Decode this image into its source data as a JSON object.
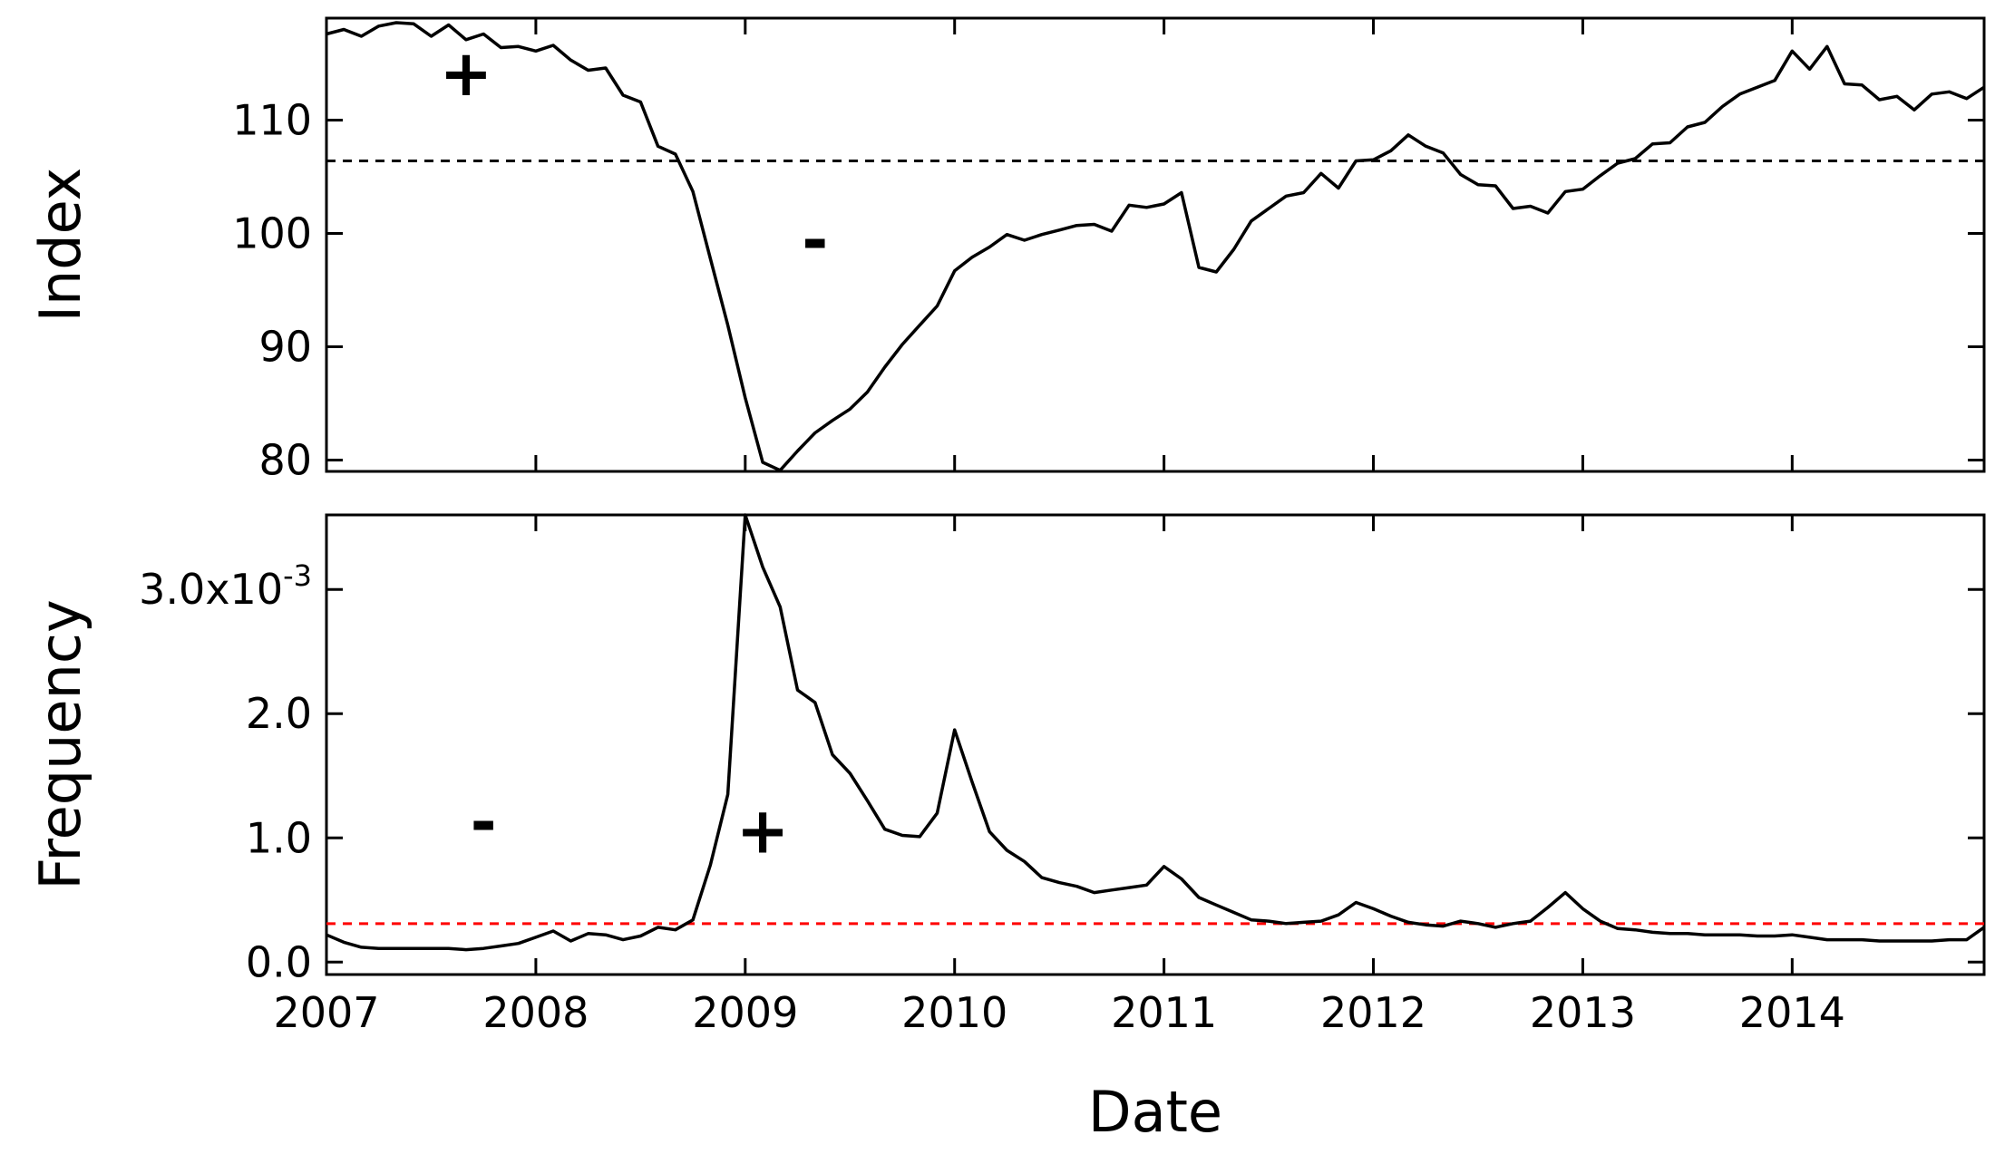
{
  "chart_data": [
    {
      "type": "line",
      "ylabel": "Index",
      "xlim": [
        "2007-01",
        "2014-12"
      ],
      "ylim": [
        79,
        119
      ],
      "yticks": [
        {
          "value": 80,
          "label": "80"
        },
        {
          "value": 90,
          "label": "90"
        },
        {
          "value": 100,
          "label": "100"
        },
        {
          "value": 110,
          "label": "110"
        }
      ],
      "reference_line": {
        "value": 106.4,
        "color": "#000000",
        "style": "dashed"
      },
      "annotations": [
        {
          "text": "+",
          "x": "2007-09",
          "y": 112.2
        },
        {
          "text": "-",
          "x": "2009-05",
          "y": 97.5
        }
      ],
      "series": [
        {
          "color": "#000000",
          "x": [
            "2007-01",
            "2007-02",
            "2007-03",
            "2007-04",
            "2007-05",
            "2007-06",
            "2007-07",
            "2007-08",
            "2007-09",
            "2007-10",
            "2007-11",
            "2007-12",
            "2008-01",
            "2008-02",
            "2008-03",
            "2008-04",
            "2008-05",
            "2008-06",
            "2008-07",
            "2008-08",
            "2008-09",
            "2008-10",
            "2008-11",
            "2008-12",
            "2009-01",
            "2009-02",
            "2009-03",
            "2009-04",
            "2009-05",
            "2009-06",
            "2009-07",
            "2009-08",
            "2009-09",
            "2009-10",
            "2009-11",
            "2009-12",
            "2010-01",
            "2010-02",
            "2010-03",
            "2010-04",
            "2010-05",
            "2010-06",
            "2010-07",
            "2010-08",
            "2010-09",
            "2010-10",
            "2010-11",
            "2010-12",
            "2011-01",
            "2011-02",
            "2011-03",
            "2011-04",
            "2011-05",
            "2011-06",
            "2011-07",
            "2011-08",
            "2011-09",
            "2011-10",
            "2011-11",
            "2011-12",
            "2012-01",
            "2012-02",
            "2012-03",
            "2012-04",
            "2012-05",
            "2012-06",
            "2012-07",
            "2012-08",
            "2012-09",
            "2012-10",
            "2012-11",
            "2012-12",
            "2013-01",
            "2013-02",
            "2013-03",
            "2013-04",
            "2013-05",
            "2013-06",
            "2013-07",
            "2013-08",
            "2013-09",
            "2013-10",
            "2013-11",
            "2013-12",
            "2014-01",
            "2014-02",
            "2014-03",
            "2014-04",
            "2014-05",
            "2014-06",
            "2014-07",
            "2014-08",
            "2014-09",
            "2014-10",
            "2014-11",
            "2014-12"
          ],
          "values": [
            117.6,
            118.0,
            117.4,
            118.3,
            118.6,
            118.5,
            117.4,
            118.4,
            117.1,
            117.6,
            116.4,
            116.5,
            116.1,
            116.6,
            115.3,
            114.4,
            114.6,
            112.2,
            111.6,
            107.7,
            107.0,
            103.7,
            97.8,
            91.9,
            85.5,
            79.8,
            79.1,
            80.8,
            82.4,
            83.5,
            84.5,
            86.0,
            88.2,
            90.2,
            91.9,
            93.6,
            96.7,
            97.9,
            98.8,
            99.9,
            99.4,
            99.9,
            100.3,
            100.7,
            100.8,
            100.2,
            102.5,
            102.3,
            102.6,
            103.6,
            97.0,
            96.6,
            98.6,
            101.1,
            102.2,
            103.3,
            103.6,
            105.3,
            104.0,
            106.4,
            106.5,
            107.3,
            108.7,
            107.7,
            107.1,
            105.2,
            104.3,
            104.2,
            102.2,
            102.4,
            101.8,
            103.7,
            103.9,
            105.1,
            106.2,
            106.6,
            107.9,
            108.0,
            109.4,
            109.8,
            111.2,
            112.3,
            112.9,
            113.5,
            116.1,
            114.5,
            116.5,
            113.2,
            113.1,
            111.8,
            112.1,
            110.9,
            112.3,
            112.5,
            111.9,
            112.9
          ]
        }
      ]
    },
    {
      "type": "line",
      "xlabel": "Date",
      "ylabel": "Frequency",
      "xlim": [
        "2007-01",
        "2014-12"
      ],
      "ylim": [
        -0.0001,
        0.0036
      ],
      "xticks": [
        {
          "value": "2007-01",
          "label": "2007"
        },
        {
          "value": "2008-01",
          "label": "2008"
        },
        {
          "value": "2009-01",
          "label": "2009"
        },
        {
          "value": "2010-01",
          "label": "2010"
        },
        {
          "value": "2011-01",
          "label": "2011"
        },
        {
          "value": "2012-01",
          "label": "2012"
        },
        {
          "value": "2013-01",
          "label": "2013"
        },
        {
          "value": "2014-01",
          "label": "2014"
        }
      ],
      "yticks": [
        {
          "value": 0,
          "label": "0.0"
        },
        {
          "value": 0.001,
          "label": "1.0"
        },
        {
          "value": 0.002,
          "label": "2.0"
        },
        {
          "value": 0.003,
          "label": "3.0x10",
          "superscript": "-3"
        }
      ],
      "reference_line": {
        "value": 0.00031,
        "color": "#ff0000",
        "style": "dashed"
      },
      "annotations": [
        {
          "text": "-",
          "x": "2007-10",
          "y": 0.00095
        },
        {
          "text": "+",
          "x": "2009-02",
          "y": 0.00088
        }
      ],
      "series": [
        {
          "color": "#000000",
          "x": [
            "2007-01",
            "2007-02",
            "2007-03",
            "2007-04",
            "2007-05",
            "2007-06",
            "2007-07",
            "2007-08",
            "2007-09",
            "2007-10",
            "2007-11",
            "2007-12",
            "2008-01",
            "2008-02",
            "2008-03",
            "2008-04",
            "2008-05",
            "2008-06",
            "2008-07",
            "2008-08",
            "2008-09",
            "2008-10",
            "2008-11",
            "2008-12",
            "2009-01",
            "2009-02",
            "2009-03",
            "2009-04",
            "2009-05",
            "2009-06",
            "2009-07",
            "2009-08",
            "2009-09",
            "2009-10",
            "2009-11",
            "2009-12",
            "2010-01",
            "2010-02",
            "2010-03",
            "2010-04",
            "2010-05",
            "2010-06",
            "2010-07",
            "2010-08",
            "2010-09",
            "2010-10",
            "2010-11",
            "2010-12",
            "2011-01",
            "2011-02",
            "2011-03",
            "2011-04",
            "2011-05",
            "2011-06",
            "2011-07",
            "2011-08",
            "2011-09",
            "2011-10",
            "2011-11",
            "2011-12",
            "2012-01",
            "2012-02",
            "2012-03",
            "2012-04",
            "2012-05",
            "2012-06",
            "2012-07",
            "2012-08",
            "2012-09",
            "2012-10",
            "2012-11",
            "2012-12",
            "2013-01",
            "2013-02",
            "2013-03",
            "2013-04",
            "2013-05",
            "2013-06",
            "2013-07",
            "2013-08",
            "2013-09",
            "2013-10",
            "2013-11",
            "2013-12",
            "2014-01",
            "2014-02",
            "2014-03",
            "2014-04",
            "2014-05",
            "2014-06",
            "2014-07",
            "2014-08",
            "2014-09",
            "2014-10",
            "2014-11",
            "2014-12"
          ],
          "values": [
            0.00022,
            0.00016,
            0.00012,
            0.00011,
            0.00011,
            0.00011,
            0.00011,
            0.00011,
            0.0001,
            0.00011,
            0.00013,
            0.00015,
            0.0002,
            0.00025,
            0.00017,
            0.00023,
            0.00022,
            0.00018,
            0.00021,
            0.00028,
            0.00026,
            0.00034,
            0.00078,
            0.00135,
            0.0036,
            0.00318,
            0.00286,
            0.00219,
            0.00209,
            0.00167,
            0.00152,
            0.0013,
            0.00107,
            0.00102,
            0.00101,
            0.0012,
            0.00187,
            0.00145,
            0.00105,
            0.0009,
            0.00081,
            0.00068,
            0.00064,
            0.00061,
            0.00056,
            0.00058,
            0.0006,
            0.00062,
            0.00077,
            0.00067,
            0.00052,
            0.00046,
            0.0004,
            0.00034,
            0.00033,
            0.00031,
            0.00032,
            0.00033,
            0.00038,
            0.00048,
            0.00043,
            0.00037,
            0.00032,
            0.0003,
            0.00029,
            0.00033,
            0.00031,
            0.00028,
            0.00031,
            0.00033,
            0.00044,
            0.00056,
            0.00043,
            0.00033,
            0.00027,
            0.00026,
            0.00024,
            0.00023,
            0.00023,
            0.00022,
            0.00022,
            0.00022,
            0.00021,
            0.00021,
            0.00022,
            0.0002,
            0.00018,
            0.00018,
            0.00018,
            0.00017,
            0.00017,
            0.00017,
            0.00017,
            0.00018,
            0.00018,
            0.00028
          ]
        }
      ]
    }
  ]
}
